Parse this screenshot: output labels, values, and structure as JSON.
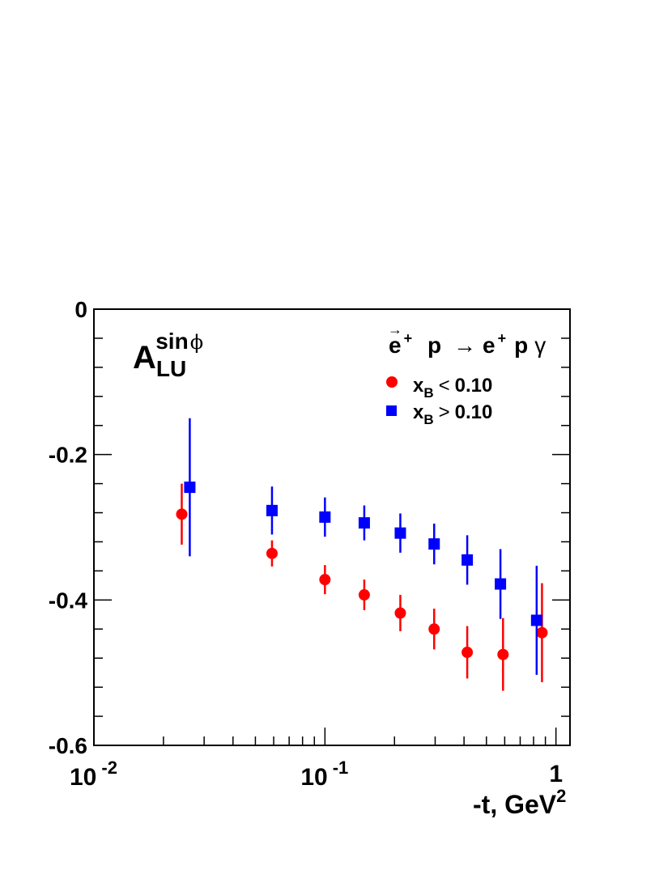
{
  "chart_data": {
    "type": "scatter",
    "xscale": "log",
    "xlim": [
      0.01,
      1.15
    ],
    "ylim": [
      -0.6,
      0
    ],
    "xlabel": {
      "main": "-t, GeV",
      "sup": "2"
    },
    "ylabel_symbol": {
      "main": "A",
      "sub": "LU",
      "sup": "sin",
      "sup_greek": "ϕ"
    },
    "y_tick_labels": [
      "0",
      "-0.2",
      "-0.4",
      "-0.6"
    ],
    "y_tick_values": [
      0,
      -0.2,
      -0.4,
      -0.6
    ],
    "x_tick_labels": [
      {
        "base": "10",
        "exp": "-2",
        "value": 0.01
      },
      {
        "base": "10",
        "exp": "-1",
        "value": 0.1
      },
      {
        "base": "1",
        "exp": "",
        "value": 1
      }
    ],
    "reaction": {
      "e": "e",
      "arrow": "→",
      "plus": "+",
      "p": "p",
      "to": "→",
      "gamma": "γ"
    },
    "legend_position": "top-right",
    "series": [
      {
        "name": "x_B < 0.10",
        "legend": {
          "x": "x",
          "sub": "B",
          "rel": "<",
          "val": "0.10"
        },
        "marker": "circle",
        "color": "#ff0000",
        "points": [
          {
            "x": 0.024,
            "y": -0.282,
            "err_lo": 0.042,
            "err_hi": 0.042
          },
          {
            "x": 0.059,
            "y": -0.336,
            "err_lo": 0.018,
            "err_hi": 0.018
          },
          {
            "x": 0.1,
            "y": -0.372,
            "err_lo": 0.02,
            "err_hi": 0.02
          },
          {
            "x": 0.148,
            "y": -0.393,
            "err_lo": 0.021,
            "err_hi": 0.021
          },
          {
            "x": 0.212,
            "y": -0.418,
            "err_lo": 0.025,
            "err_hi": 0.025
          },
          {
            "x": 0.297,
            "y": -0.44,
            "err_lo": 0.028,
            "err_hi": 0.028
          },
          {
            "x": 0.413,
            "y": -0.472,
            "err_lo": 0.036,
            "err_hi": 0.036
          },
          {
            "x": 0.59,
            "y": -0.475,
            "err_lo": 0.05,
            "err_hi": 0.05
          },
          {
            "x": 0.87,
            "y": -0.445,
            "err_lo": 0.068,
            "err_hi": 0.068
          }
        ]
      },
      {
        "name": "x_B > 0.10",
        "legend": {
          "x": "x",
          "sub": "B",
          "rel": ">",
          "val": "0.10"
        },
        "marker": "square",
        "color": "#0000ff",
        "points": [
          {
            "x": 0.026,
            "y": -0.245,
            "err_lo": 0.095,
            "err_hi": 0.095
          },
          {
            "x": 0.059,
            "y": -0.277,
            "err_lo": 0.033,
            "err_hi": 0.033
          },
          {
            "x": 0.1,
            "y": -0.286,
            "err_lo": 0.027,
            "err_hi": 0.027
          },
          {
            "x": 0.148,
            "y": -0.294,
            "err_lo": 0.024,
            "err_hi": 0.024
          },
          {
            "x": 0.212,
            "y": -0.308,
            "err_lo": 0.027,
            "err_hi": 0.027
          },
          {
            "x": 0.297,
            "y": -0.323,
            "err_lo": 0.028,
            "err_hi": 0.028
          },
          {
            "x": 0.413,
            "y": -0.345,
            "err_lo": 0.034,
            "err_hi": 0.034
          },
          {
            "x": 0.575,
            "y": -0.378,
            "err_lo": 0.048,
            "err_hi": 0.048
          },
          {
            "x": 0.825,
            "y": -0.428,
            "err_lo": 0.075,
            "err_hi": 0.075
          }
        ]
      }
    ]
  }
}
